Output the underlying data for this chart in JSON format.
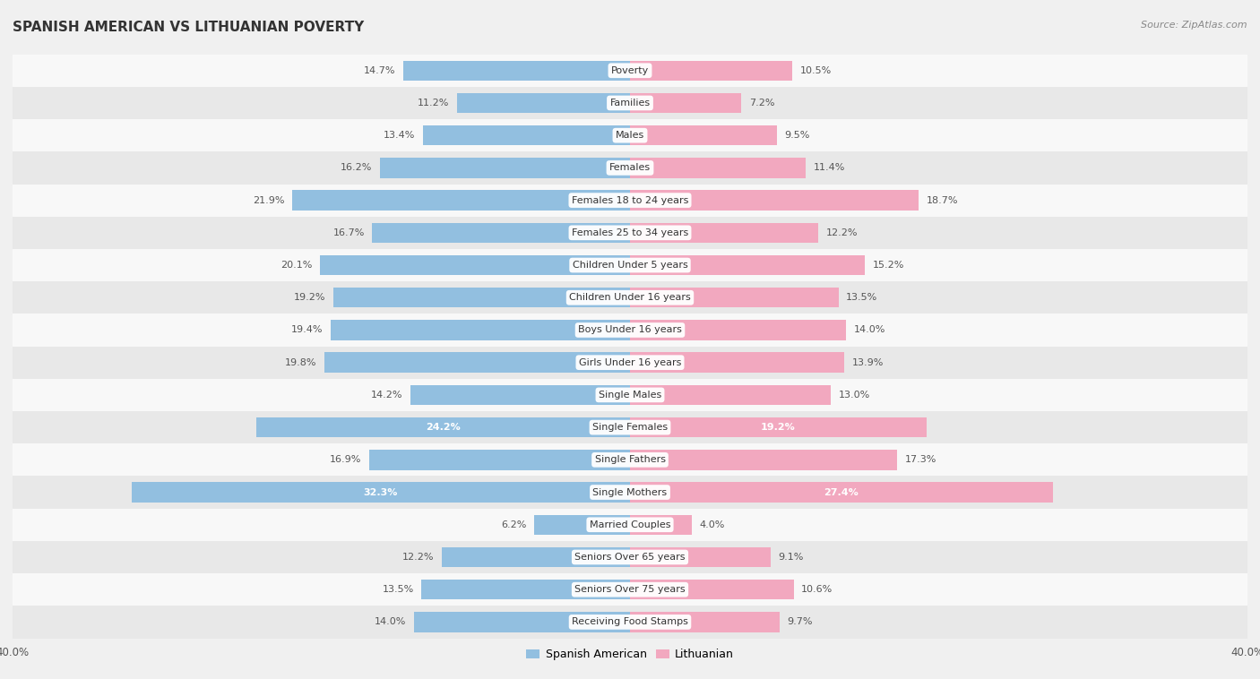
{
  "title": "SPANISH AMERICAN VS LITHUANIAN POVERTY",
  "source": "Source: ZipAtlas.com",
  "categories": [
    "Poverty",
    "Families",
    "Males",
    "Females",
    "Females 18 to 24 years",
    "Females 25 to 34 years",
    "Children Under 5 years",
    "Children Under 16 years",
    "Boys Under 16 years",
    "Girls Under 16 years",
    "Single Males",
    "Single Females",
    "Single Fathers",
    "Single Mothers",
    "Married Couples",
    "Seniors Over 65 years",
    "Seniors Over 75 years",
    "Receiving Food Stamps"
  ],
  "spanish_american": [
    14.7,
    11.2,
    13.4,
    16.2,
    21.9,
    16.7,
    20.1,
    19.2,
    19.4,
    19.8,
    14.2,
    24.2,
    16.9,
    32.3,
    6.2,
    12.2,
    13.5,
    14.0
  ],
  "lithuanian": [
    10.5,
    7.2,
    9.5,
    11.4,
    18.7,
    12.2,
    15.2,
    13.5,
    14.0,
    13.9,
    13.0,
    19.2,
    17.3,
    27.4,
    4.0,
    9.1,
    10.6,
    9.7
  ],
  "spanish_color": "#92bfe0",
  "lithuanian_color": "#f2a8bf",
  "label_color_default": "#555555",
  "label_color_white": "#ffffff",
  "highlight_rows": [
    11,
    13
  ],
  "axis_limit": 40.0,
  "bar_height": 0.62,
  "background_color": "#f0f0f0",
  "row_bg_light": "#f8f8f8",
  "row_bg_dark": "#e8e8e8",
  "title_fontsize": 11,
  "label_fontsize": 8,
  "category_fontsize": 8,
  "axis_fontsize": 8.5,
  "legend_fontsize": 9
}
